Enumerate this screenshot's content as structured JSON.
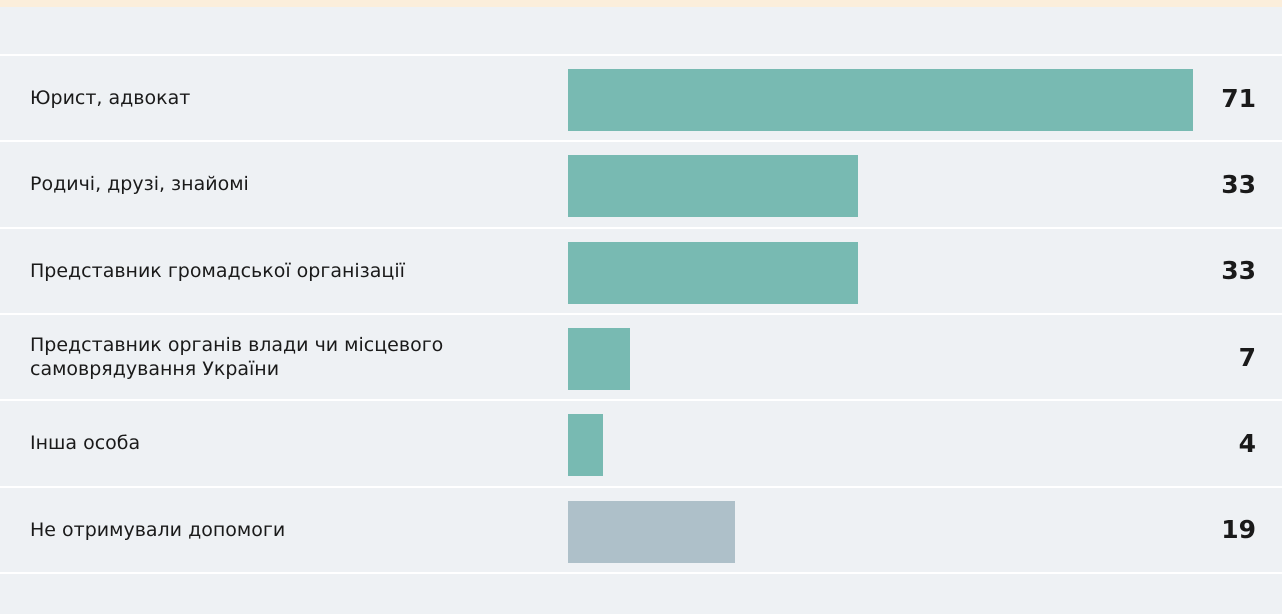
{
  "chart_data": {
    "type": "bar",
    "orientation": "horizontal",
    "categories": [
      "Юрист, адвокат",
      "Родичі, друзі, знайомі",
      "Представник громадської організації",
      "Представник органів влади чи місцевого самоврядування України",
      "Інша особа",
      "Не отримували допомоги"
    ],
    "values": [
      71,
      33,
      33,
      7,
      4,
      19
    ],
    "colors": [
      "#78bab2",
      "#78bab2",
      "#78bab2",
      "#78bab2",
      "#78bab2",
      "#aec0c9"
    ]
  }
}
